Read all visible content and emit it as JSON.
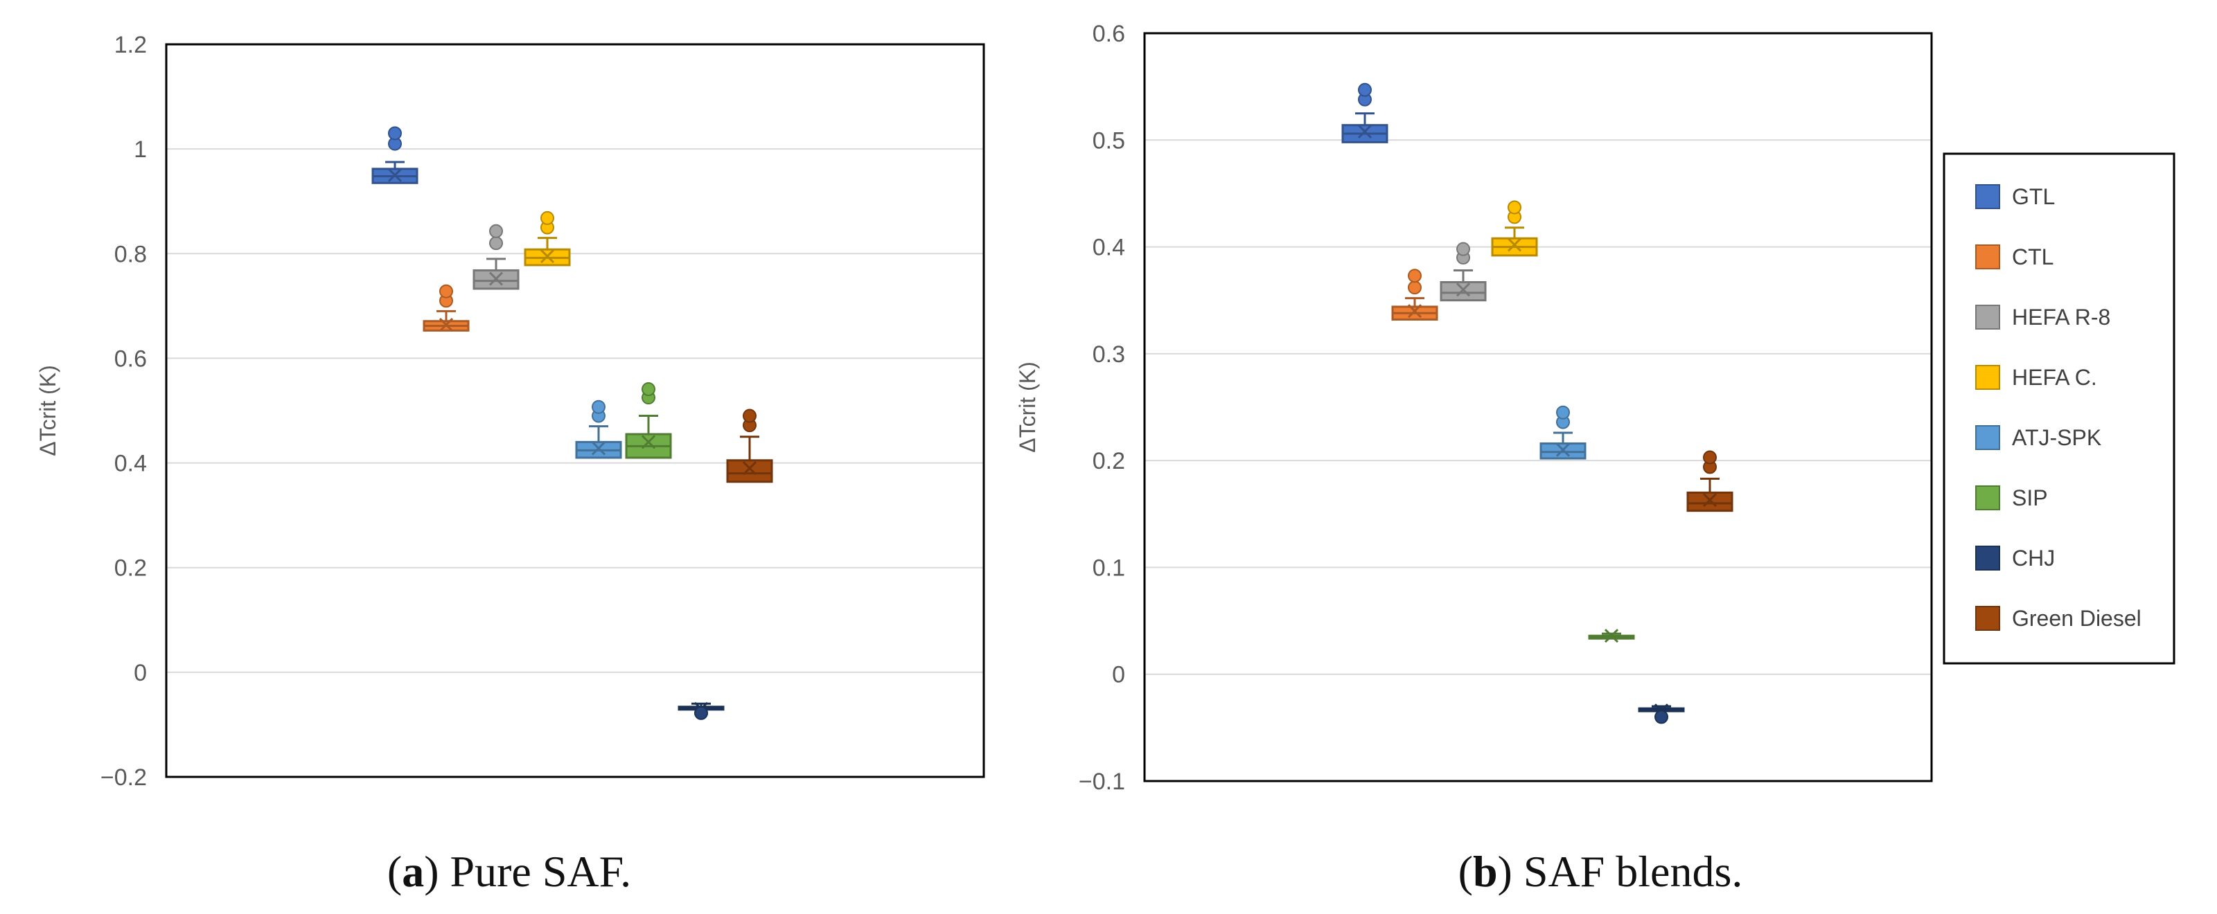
{
  "legend": [
    {
      "name": "GTL",
      "color": "#4472C4"
    },
    {
      "name": "CTL",
      "color": "#ED7D31"
    },
    {
      "name": "HEFA R-8",
      "color": "#A5A5A5"
    },
    {
      "name": "HEFA C.",
      "color": "#FFC000"
    },
    {
      "name": "ATJ-SPK",
      "color": "#5B9BD5"
    },
    {
      "name": "SIP",
      "color": "#70AD47"
    },
    {
      "name": "CHJ",
      "color": "#264478"
    },
    {
      "name": "Green Diesel",
      "color": "#9E480E"
    }
  ],
  "chart_data": [
    {
      "type": "boxplot",
      "title": "",
      "caption_label": "a",
      "caption_text": "Pure SAF.",
      "ylabel": "ΔTcrit (K)",
      "xlabel": "",
      "ylim": [
        -0.2,
        1.2
      ],
      "yticks": [
        -0.2,
        0,
        0.2,
        0.4,
        0.6,
        0.8,
        1,
        1.2
      ],
      "ytick_labels": [
        "−0.2",
        "0",
        "0.2",
        "0.4",
        "0.6",
        "0.8",
        "1",
        "1.2"
      ],
      "grid": true,
      "series": [
        {
          "name": "GTL",
          "min": 0.935,
          "q1": 0.935,
          "median": 0.948,
          "q3": 0.962,
          "max": 0.975,
          "mean": 0.95,
          "outliers": [
            1.01,
            1.03
          ]
        },
        {
          "name": "CTL",
          "min": 0.653,
          "q1": 0.653,
          "median": 0.662,
          "q3": 0.671,
          "max": 0.69,
          "mean": 0.664,
          "outliers": [
            0.71,
            0.728
          ]
        },
        {
          "name": "HEFA R-8",
          "min": 0.733,
          "q1": 0.733,
          "median": 0.748,
          "q3": 0.768,
          "max": 0.79,
          "mean": 0.752,
          "outliers": [
            0.82,
            0.843
          ]
        },
        {
          "name": "HEFA C.",
          "min": 0.778,
          "q1": 0.778,
          "median": 0.792,
          "q3": 0.808,
          "max": 0.83,
          "mean": 0.795,
          "outliers": [
            0.85,
            0.868
          ]
        },
        {
          "name": "ATJ-SPK",
          "min": 0.41,
          "q1": 0.41,
          "median": 0.424,
          "q3": 0.44,
          "max": 0.47,
          "mean": 0.428,
          "outliers": [
            0.49,
            0.507
          ]
        },
        {
          "name": "SIP",
          "min": 0.41,
          "q1": 0.41,
          "median": 0.432,
          "q3": 0.455,
          "max": 0.49,
          "mean": 0.44,
          "outliers": [
            0.525,
            0.541
          ]
        },
        {
          "name": "CHJ",
          "min": -0.074,
          "q1": -0.07,
          "median": -0.068,
          "q3": -0.066,
          "max": -0.06,
          "mean": -0.07,
          "outliers": [
            -0.078
          ]
        },
        {
          "name": "Green Diesel",
          "min": 0.364,
          "q1": 0.364,
          "median": 0.38,
          "q3": 0.405,
          "max": 0.45,
          "mean": 0.39,
          "outliers": [
            0.472,
            0.49
          ]
        }
      ]
    },
    {
      "type": "boxplot",
      "title": "",
      "caption_label": "b",
      "caption_text": "SAF blends.",
      "ylabel": "ΔTcrit (K)",
      "xlabel": "",
      "ylim": [
        -0.1,
        0.6
      ],
      "yticks": [
        -0.1,
        0,
        0.1,
        0.2,
        0.3,
        0.4,
        0.5,
        0.6
      ],
      "ytick_labels": [
        "−0.1",
        "0",
        "0.1",
        "0.2",
        "0.3",
        "0.4",
        "0.5",
        "0.6"
      ],
      "grid": true,
      "series": [
        {
          "name": "GTL",
          "min": 0.498,
          "q1": 0.498,
          "median": 0.506,
          "q3": 0.514,
          "max": 0.525,
          "mean": 0.508,
          "outliers": [
            0.538,
            0.547
          ]
        },
        {
          "name": "CTL",
          "min": 0.332,
          "q1": 0.332,
          "median": 0.338,
          "q3": 0.344,
          "max": 0.352,
          "mean": 0.34,
          "outliers": [
            0.362,
            0.373
          ]
        },
        {
          "name": "HEFA R-8",
          "min": 0.35,
          "q1": 0.35,
          "median": 0.357,
          "q3": 0.367,
          "max": 0.378,
          "mean": 0.36,
          "outliers": [
            0.39,
            0.398
          ]
        },
        {
          "name": "HEFA C.",
          "min": 0.392,
          "q1": 0.392,
          "median": 0.4,
          "q3": 0.408,
          "max": 0.418,
          "mean": 0.402,
          "outliers": [
            0.428,
            0.437
          ]
        },
        {
          "name": "ATJ-SPK",
          "min": 0.202,
          "q1": 0.202,
          "median": 0.208,
          "q3": 0.216,
          "max": 0.226,
          "mean": 0.21,
          "outliers": [
            0.236,
            0.245
          ]
        },
        {
          "name": "SIP",
          "min": 0.034,
          "q1": 0.034,
          "median": 0.035,
          "q3": 0.036,
          "max": 0.038,
          "mean": 0.036,
          "outliers": []
        },
        {
          "name": "CHJ",
          "min": -0.036,
          "q1": -0.034,
          "median": -0.033,
          "q3": -0.032,
          "max": -0.03,
          "mean": -0.034,
          "outliers": [
            -0.04
          ]
        },
        {
          "name": "Green Diesel",
          "min": 0.153,
          "q1": 0.153,
          "median": 0.16,
          "q3": 0.17,
          "max": 0.183,
          "mean": 0.163,
          "outliers": [
            0.194,
            0.203
          ]
        }
      ]
    }
  ]
}
